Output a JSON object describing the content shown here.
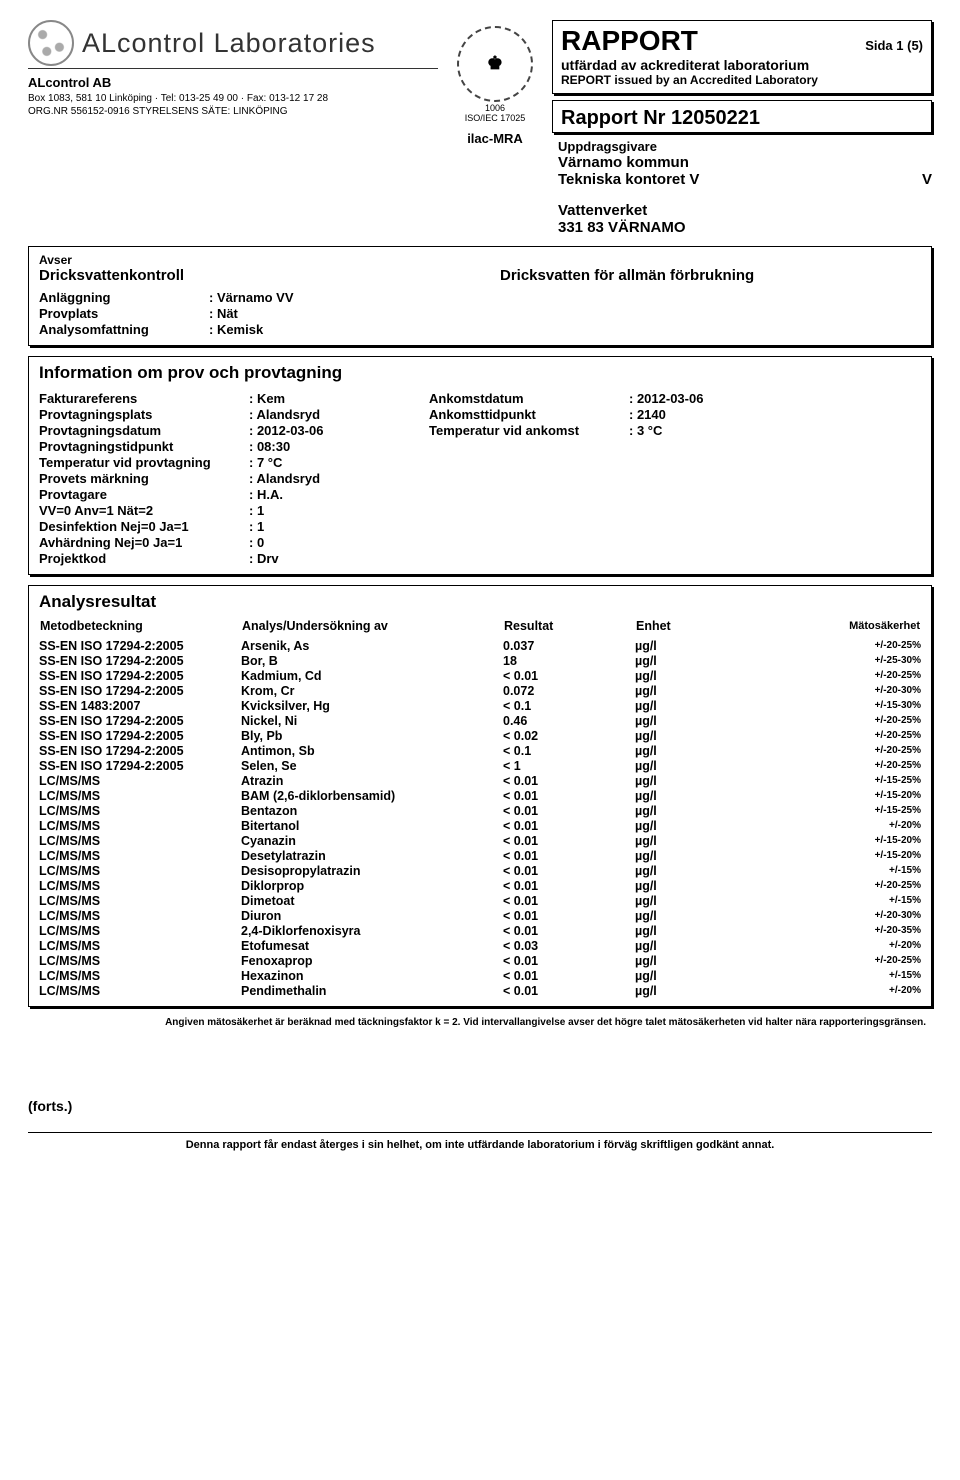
{
  "header": {
    "brand": "ALcontrol Laboratories",
    "companyName": "ALcontrol AB",
    "addressLine1": "Box 1083, 581 10 Linköping · Tel: 013-25 49 00 · Fax: 013-12 17 28",
    "addressLine2": "ORG.NR 556152-0916 STYRELSENS SÄTE: LINKÖPING",
    "accredNo": "1006",
    "accredStd": "ISO/IEC 17025",
    "reportTitle": "RAPPORT",
    "pageIndicator": "Sida 1 (5)",
    "accLine1": "utfärdad av ackrediterat laboratorium",
    "accLine2": "REPORT issued by an Accredited Laboratory",
    "reportNo": "Rapport Nr 12050221",
    "clientLabel": "Uppdragsgivare",
    "clientName": "Värnamo kommun",
    "clientDept": "Tekniska kontoret V",
    "clientDeptSuffix": "V",
    "clientSite": "Vattenverket",
    "clientPostal": "331 83 VÄRNAMO"
  },
  "avser": {
    "label": "Avser",
    "title": "Dricksvattenkontroll",
    "rightTitle": "Dricksvatten för allmän förbrukning",
    "kv": [
      {
        "k": "Anläggning",
        "v": ": Värnamo VV"
      },
      {
        "k": "Provplats",
        "v": ": Nät"
      },
      {
        "k": "Analysomfattning",
        "v": ": Kemisk"
      }
    ]
  },
  "info": {
    "header": "Information om prov och provtagning",
    "rows": [
      {
        "k1": "Fakturareferens",
        "v1": ": Kem",
        "k2": "Ankomstdatum",
        "v2": ": 2012-03-06"
      },
      {
        "k1": "Provtagningsplats",
        "v1": ": Alandsryd",
        "k2": "Ankomsttidpunkt",
        "v2": ": 2140"
      },
      {
        "k1": "Provtagningsdatum",
        "v1": ": 2012-03-06",
        "k2": "Temperatur vid ankomst",
        "v2": ": 3 °C"
      },
      {
        "k1": "Provtagningstidpunkt",
        "v1": ": 08:30",
        "k2": "",
        "v2": ""
      },
      {
        "k1": "Temperatur vid provtagning",
        "v1": ": 7 °C",
        "k2": "",
        "v2": ""
      },
      {
        "k1": "Provets märkning",
        "v1": ": Alandsryd",
        "k2": "",
        "v2": ""
      },
      {
        "k1": "Provtagare",
        "v1": ": H.A.",
        "k2": "",
        "v2": ""
      },
      {
        "k1": "VV=0 Anv=1 Nät=2",
        "v1": ": 1",
        "k2": "",
        "v2": ""
      },
      {
        "k1": "Desinfektion Nej=0 Ja=1",
        "v1": ": 1",
        "k2": "",
        "v2": ""
      },
      {
        "k1": "Avhärdning Nej=0 Ja=1",
        "v1": ": 0",
        "k2": "",
        "v2": ""
      },
      {
        "k1": "Projektkod",
        "v1": ": Drv",
        "k2": "",
        "v2": ""
      }
    ]
  },
  "results": {
    "header": "Analysresultat",
    "columns": {
      "method": "Metodbeteckning",
      "analyte": "Analys/Undersökning av",
      "result": "Resultat",
      "unit": "Enhet",
      "uncertainty": "Mätosäkerhet"
    },
    "rows": [
      {
        "method": "SS-EN ISO 17294-2:2005",
        "analyte": "Arsenik, As",
        "result": "0.037",
        "unit": "µg/l",
        "unc": "+/-20-25%"
      },
      {
        "method": "SS-EN ISO 17294-2:2005",
        "analyte": "Bor, B",
        "result": "18",
        "unit": "µg/l",
        "unc": "+/-25-30%"
      },
      {
        "method": "SS-EN ISO 17294-2:2005",
        "analyte": "Kadmium, Cd",
        "result": "< 0.01",
        "unit": "µg/l",
        "unc": "+/-20-25%"
      },
      {
        "method": "SS-EN ISO 17294-2:2005",
        "analyte": "Krom, Cr",
        "result": "0.072",
        "unit": "µg/l",
        "unc": "+/-20-30%"
      },
      {
        "method": "SS-EN 1483:2007",
        "analyte": "Kvicksilver, Hg",
        "result": "< 0.1",
        "unit": "µg/l",
        "unc": "+/-15-30%"
      },
      {
        "method": "SS-EN ISO 17294-2:2005",
        "analyte": "Nickel, Ni",
        "result": "0.46",
        "unit": "µg/l",
        "unc": "+/-20-25%"
      },
      {
        "method": "SS-EN ISO 17294-2:2005",
        "analyte": "Bly, Pb",
        "result": "< 0.02",
        "unit": "µg/l",
        "unc": "+/-20-25%"
      },
      {
        "method": "SS-EN ISO 17294-2:2005",
        "analyte": "Antimon, Sb",
        "result": "< 0.1",
        "unit": "µg/l",
        "unc": "+/-20-25%"
      },
      {
        "method": "SS-EN ISO 17294-2:2005",
        "analyte": "Selen, Se",
        "result": "< 1",
        "unit": "µg/l",
        "unc": "+/-20-25%"
      },
      {
        "method": "LC/MS/MS",
        "analyte": "Atrazin",
        "result": "< 0.01",
        "unit": "µg/l",
        "unc": "+/-15-25%"
      },
      {
        "method": "LC/MS/MS",
        "analyte": "BAM (2,6-diklorbensamid)",
        "result": "< 0.01",
        "unit": "µg/l",
        "unc": "+/-15-20%"
      },
      {
        "method": "LC/MS/MS",
        "analyte": "Bentazon",
        "result": "< 0.01",
        "unit": "µg/l",
        "unc": "+/-15-25%"
      },
      {
        "method": "LC/MS/MS",
        "analyte": "Bitertanol",
        "result": "< 0.01",
        "unit": "µg/l",
        "unc": "+/-20%"
      },
      {
        "method": "LC/MS/MS",
        "analyte": "Cyanazin",
        "result": "< 0.01",
        "unit": "µg/l",
        "unc": "+/-15-20%"
      },
      {
        "method": "LC/MS/MS",
        "analyte": "Desetylatrazin",
        "result": "< 0.01",
        "unit": "µg/l",
        "unc": "+/-15-20%"
      },
      {
        "method": "LC/MS/MS",
        "analyte": "Desisopropylatrazin",
        "result": "< 0.01",
        "unit": "µg/l",
        "unc": "+/-15%"
      },
      {
        "method": "LC/MS/MS",
        "analyte": "Diklorprop",
        "result": "< 0.01",
        "unit": "µg/l",
        "unc": "+/-20-25%"
      },
      {
        "method": "LC/MS/MS",
        "analyte": "Dimetoat",
        "result": "< 0.01",
        "unit": "µg/l",
        "unc": "+/-15%"
      },
      {
        "method": "LC/MS/MS",
        "analyte": "Diuron",
        "result": "< 0.01",
        "unit": "µg/l",
        "unc": "+/-20-30%"
      },
      {
        "method": "LC/MS/MS",
        "analyte": "2,4-Diklorfenoxisyra",
        "result": "< 0.01",
        "unit": "µg/l",
        "unc": "+/-20-35%"
      },
      {
        "method": "LC/MS/MS",
        "analyte": "Etofumesat",
        "result": "< 0.03",
        "unit": "µg/l",
        "unc": "+/-20%"
      },
      {
        "method": "LC/MS/MS",
        "analyte": "Fenoxaprop",
        "result": "< 0.01",
        "unit": "µg/l",
        "unc": "+/-20-25%"
      },
      {
        "method": "LC/MS/MS",
        "analyte": "Hexazinon",
        "result": "< 0.01",
        "unit": "µg/l",
        "unc": "+/-15%"
      },
      {
        "method": "LC/MS/MS",
        "analyte": "Pendimethalin",
        "result": "< 0.01",
        "unit": "µg/l",
        "unc": "+/-20%"
      }
    ]
  },
  "footnote": "Angiven mätosäkerhet är beräknad med täckningsfaktor k = 2. Vid intervallangivelse avser det högre talet mätosäkerheten vid halter nära rapporteringsgränsen.",
  "forts": "(forts.)",
  "footer": "Denna rapport får endast återges i sin helhet, om inte utfärdande laboratorium i förväg skriftligen godkänt annat."
}
